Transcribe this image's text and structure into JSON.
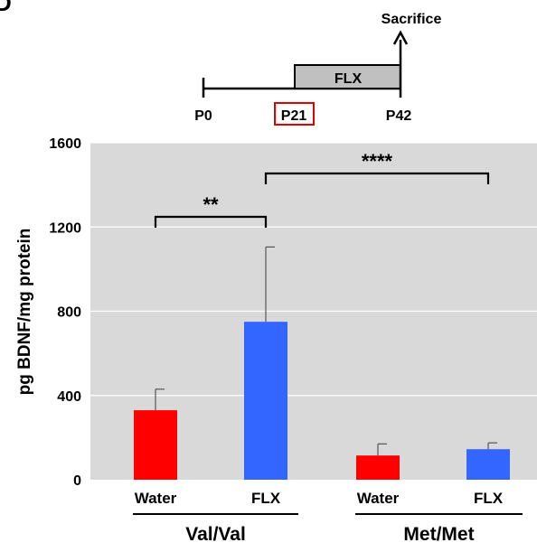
{
  "panel_letter": "D",
  "timeline": {
    "event_label": "Sacrifice",
    "treatment_label": "FLX",
    "points": [
      "P0",
      "P21",
      "P42"
    ],
    "highlighted_point": "P21"
  },
  "chart_data": {
    "type": "bar",
    "ylabel": "pg BDNF/mg protein",
    "xlabel": "",
    "ylim": [
      0,
      1600
    ],
    "yticks": [
      0,
      400,
      800,
      1200,
      1600
    ],
    "grid": true,
    "categories": [
      "Water",
      "FLX",
      "Water",
      "FLX"
    ],
    "groups": [
      {
        "label": "Val/Val",
        "category_indices": [
          0,
          1
        ]
      },
      {
        "label": "Met/Met",
        "category_indices": [
          2,
          3
        ]
      }
    ],
    "values": [
      330,
      750,
      115,
      145
    ],
    "errors": [
      100,
      355,
      55,
      30
    ],
    "colors": [
      "#ff0000",
      "#3366ff",
      "#ff0000",
      "#3366ff"
    ],
    "significance": [
      {
        "from": 0,
        "to": 1,
        "label": "**"
      },
      {
        "from": 1,
        "to": 3,
        "label": "****"
      }
    ]
  }
}
